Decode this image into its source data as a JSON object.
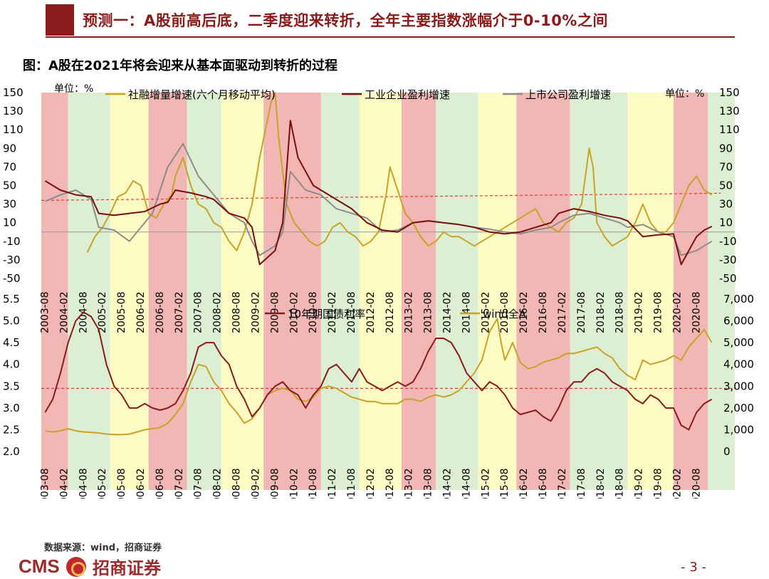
{
  "header": {
    "title": "预测一：A股前高后底，二季度迎来转折，全年主要指数涨幅介于0-10%之间"
  },
  "figure": {
    "title": "图：A股在2021年将会迎来从基本面驱动到转折的过程"
  },
  "footer": {
    "source": "数据来源：wind，招商证券",
    "logo_text": "CMS",
    "logo_cn": "招商证券",
    "page_number": "- 3 -"
  },
  "colors": {
    "red_band": "#f2b7b4",
    "green_band": "#dcefd3",
    "yellow_band": "#fdfbc4",
    "tsf": "#c9a227",
    "industrial": "#7b0d0d",
    "listed": "#8c8c8c",
    "bond": "#8b1a1a",
    "wind": "#c9a227",
    "reference_line": "#e53935",
    "wind_fill": "#d4a017"
  },
  "chart_data": [
    {
      "type": "line",
      "y_unit_left": "单位：%",
      "y_unit_right": "单位：%",
      "ylim": [
        -50,
        150
      ],
      "yticks": [
        -50,
        -30,
        -10,
        10,
        30,
        50,
        70,
        90,
        110,
        130,
        150
      ],
      "xlim": [
        2003.5,
        2021.6
      ],
      "x_tick_labels": [
        "2003-08",
        "2004-02",
        "2004-08",
        "2005-02",
        "2005-08",
        "2006-02",
        "2006-08",
        "2007-02",
        "2007-08",
        "2008-02",
        "2008-08",
        "2009-02",
        "2009-08",
        "2010-02",
        "2010-08",
        "2011-02",
        "2011-08",
        "2012-02",
        "2012-08",
        "2013-02",
        "2013-08",
        "2014-02",
        "2014-08",
        "2015-02",
        "2015-08",
        "2016-02",
        "2016-08",
        "2017-02",
        "2017-08",
        "2018-02",
        "2018-08",
        "2019-02",
        "2019-08",
        "2020-02",
        "2020-08"
      ],
      "reference_line": 34,
      "series": [
        {
          "name": "社融增量增速(六个月移动平均)",
          "x": [
            2004.7,
            2004.9,
            2005.1,
            2005.3,
            2005.5,
            2005.7,
            2005.9,
            2006.1,
            2006.3,
            2006.5,
            2006.7,
            2006.9,
            2007.0,
            2007.2,
            2007.4,
            2007.6,
            2007.8,
            2008.0,
            2008.2,
            2008.4,
            2008.6,
            2008.8,
            2009.0,
            2009.2,
            2009.4,
            2009.5,
            2009.6,
            2009.7,
            2009.9,
            2010.1,
            2010.3,
            2010.5,
            2010.7,
            2010.9,
            2011.1,
            2011.3,
            2011.5,
            2011.7,
            2011.9,
            2012.1,
            2012.3,
            2012.5,
            2012.6,
            2012.8,
            2013.0,
            2013.2,
            2013.4,
            2013.6,
            2013.8,
            2014.0,
            2014.2,
            2014.4,
            2014.6,
            2014.8,
            2015.0,
            2015.2,
            2015.4,
            2015.6,
            2015.8,
            2016.0,
            2016.2,
            2016.4,
            2016.6,
            2016.8,
            2017.0,
            2017.2,
            2017.4,
            2017.6,
            2017.8,
            2017.9,
            2018.0,
            2018.2,
            2018.4,
            2018.6,
            2018.8,
            2019.0,
            2019.2,
            2019.4,
            2019.6,
            2019.8,
            2020.0,
            2020.2,
            2020.4,
            2020.6,
            2020.8,
            2021.0
          ],
          "values": [
            -22,
            -5,
            5,
            20,
            38,
            42,
            55,
            50,
            20,
            15,
            30,
            40,
            60,
            80,
            50,
            30,
            25,
            10,
            5,
            -10,
            -20,
            0,
            30,
            80,
            120,
            140,
            150,
            100,
            30,
            10,
            0,
            -10,
            -15,
            -10,
            5,
            10,
            0,
            -5,
            -15,
            -10,
            0,
            40,
            70,
            45,
            20,
            10,
            -5,
            -15,
            -10,
            0,
            -5,
            -5,
            -10,
            -15,
            -10,
            -5,
            0,
            5,
            10,
            15,
            20,
            25,
            10,
            5,
            0,
            10,
            15,
            30,
            90,
            70,
            10,
            -5,
            -15,
            -10,
            -5,
            10,
            30,
            10,
            0,
            0,
            10,
            30,
            50,
            60,
            45,
            40
          ]
        },
        {
          "name": "工业企业盈利增速",
          "x": [
            2003.6,
            2004.0,
            2004.4,
            2004.8,
            2005.0,
            2005.4,
            2005.8,
            2006.2,
            2006.6,
            2006.8,
            2007.0,
            2007.4,
            2007.8,
            2008.0,
            2008.4,
            2008.8,
            2009.0,
            2009.2,
            2009.6,
            2009.8,
            2010.0,
            2010.2,
            2010.6,
            2010.8,
            2011.2,
            2011.6,
            2012.0,
            2012.4,
            2012.8,
            2013.2,
            2013.6,
            2014.0,
            2014.4,
            2014.8,
            2015.2,
            2015.6,
            2016.0,
            2016.4,
            2016.8,
            2017.0,
            2017.4,
            2017.8,
            2018.2,
            2018.6,
            2018.8,
            2019.2,
            2019.6,
            2020.0,
            2020.2,
            2020.6,
            2020.8,
            2021.0
          ],
          "values": [
            55,
            45,
            40,
            38,
            20,
            18,
            20,
            22,
            30,
            32,
            45,
            42,
            38,
            35,
            20,
            15,
            5,
            -35,
            -20,
            10,
            120,
            80,
            50,
            45,
            35,
            25,
            10,
            2,
            0,
            10,
            12,
            10,
            8,
            5,
            0,
            -2,
            0,
            5,
            10,
            20,
            25,
            22,
            18,
            15,
            12,
            -5,
            -3,
            -2,
            -35,
            -5,
            2,
            6
          ]
        },
        {
          "name": "上市公司盈利增速",
          "x": [
            2003.6,
            2004.0,
            2004.4,
            2004.8,
            2005.0,
            2005.4,
            2005.8,
            2006.0,
            2006.4,
            2006.8,
            2007.2,
            2007.6,
            2008.0,
            2008.4,
            2008.8,
            2009.0,
            2009.2,
            2009.6,
            2009.8,
            2010.0,
            2010.4,
            2010.8,
            2011.2,
            2011.6,
            2012.0,
            2012.4,
            2012.8,
            2013.2,
            2013.6,
            2014.0,
            2014.4,
            2014.8,
            2015.2,
            2015.6,
            2016.0,
            2016.4,
            2016.8,
            2017.0,
            2017.4,
            2017.8,
            2018.2,
            2018.6,
            2018.8,
            2019.2,
            2019.6,
            2020.0,
            2020.2,
            2020.6,
            2021.0
          ],
          "values": [
            33,
            40,
            45,
            35,
            5,
            2,
            -10,
            0,
            20,
            70,
            95,
            60,
            40,
            20,
            10,
            -10,
            -25,
            -15,
            0,
            65,
            45,
            40,
            25,
            20,
            15,
            0,
            2,
            10,
            12,
            10,
            8,
            5,
            3,
            0,
            -2,
            2,
            5,
            10,
            18,
            20,
            15,
            10,
            5,
            8,
            0,
            -5,
            -25,
            -20,
            -10
          ]
        }
      ]
    },
    {
      "type": "line",
      "ylim_left": [
        2.0,
        5.5
      ],
      "yticks_left": [
        2.0,
        2.5,
        3.0,
        3.5,
        4.0,
        4.5,
        5.0,
        5.5
      ],
      "ylim_right": [
        0,
        7000
      ],
      "yticks_right": [
        0,
        1000,
        2000,
        3000,
        4000,
        5000,
        6000,
        7000
      ],
      "ytick_labels_right": [
        "0",
        "1,000",
        "2,000",
        "3,000",
        "4,000",
        "5,000",
        "6,000",
        "7,000"
      ],
      "xlim": [
        2003.5,
        2021.6
      ],
      "x_tick_labels": [
        "2003-08",
        "2004-02",
        "2004-08",
        "2005-02",
        "2005-08",
        "2006-02",
        "2006-08",
        "2007-02",
        "2007-08",
        "2008-02",
        "2008-08",
        "2009-02",
        "2009-08",
        "2010-02",
        "2010-08",
        "2011-02",
        "2011-08",
        "2012-02",
        "2012-08",
        "2013-02",
        "2013-08",
        "2014-02",
        "2014-08",
        "2015-02",
        "2015-08",
        "2016-02",
        "2016-08",
        "2017-02",
        "2017-08",
        "2018-02",
        "2018-08",
        "2019-02",
        "2019-08",
        "2020-02",
        "2020-08"
      ],
      "reference_line": 3.45,
      "series": [
        {
          "name": "10年期国债利率",
          "axis": "left",
          "x": [
            2003.6,
            2003.8,
            2004.0,
            2004.2,
            2004.4,
            2004.6,
            2004.8,
            2005.0,
            2005.2,
            2005.4,
            2005.6,
            2005.8,
            2006.0,
            2006.2,
            2006.4,
            2006.6,
            2006.8,
            2007.0,
            2007.2,
            2007.4,
            2007.6,
            2007.8,
            2008.0,
            2008.2,
            2008.4,
            2008.6,
            2008.8,
            2009.0,
            2009.2,
            2009.4,
            2009.6,
            2009.8,
            2010.0,
            2010.2,
            2010.4,
            2010.6,
            2010.8,
            2011.0,
            2011.2,
            2011.4,
            2011.6,
            2011.8,
            2012.0,
            2012.2,
            2012.4,
            2012.6,
            2012.8,
            2013.0,
            2013.2,
            2013.4,
            2013.6,
            2013.8,
            2014.0,
            2014.2,
            2014.4,
            2014.6,
            2014.8,
            2015.0,
            2015.2,
            2015.4,
            2015.6,
            2015.8,
            2016.0,
            2016.2,
            2016.4,
            2016.6,
            2016.8,
            2017.0,
            2017.2,
            2017.4,
            2017.6,
            2017.8,
            2018.0,
            2018.2,
            2018.4,
            2018.6,
            2018.8,
            2019.0,
            2019.2,
            2019.4,
            2019.6,
            2019.8,
            2020.0,
            2020.2,
            2020.4,
            2020.6,
            2020.8,
            2021.0
          ],
          "values": [
            2.9,
            3.2,
            3.8,
            4.5,
            5.0,
            5.2,
            5.1,
            4.8,
            4.0,
            3.5,
            3.3,
            3.0,
            3.0,
            3.1,
            3.0,
            2.95,
            3.0,
            3.1,
            3.4,
            3.8,
            4.4,
            4.5,
            4.5,
            4.2,
            4.0,
            3.5,
            3.2,
            2.8,
            3.0,
            3.3,
            3.5,
            3.6,
            3.4,
            3.3,
            3.0,
            3.3,
            3.5,
            3.9,
            4.0,
            3.8,
            3.6,
            3.9,
            3.6,
            3.5,
            3.4,
            3.5,
            3.6,
            3.5,
            3.6,
            3.9,
            4.3,
            4.6,
            4.6,
            4.5,
            4.2,
            3.8,
            3.6,
            3.4,
            3.6,
            3.5,
            3.3,
            3.0,
            2.85,
            2.9,
            2.95,
            2.8,
            2.7,
            3.0,
            3.4,
            3.6,
            3.6,
            3.8,
            3.9,
            3.8,
            3.6,
            3.5,
            3.4,
            3.2,
            3.1,
            3.3,
            3.2,
            3.0,
            3.0,
            2.6,
            2.5,
            2.9,
            3.1,
            3.2
          ]
        },
        {
          "name": "wind全A",
          "axis": "right",
          "x": [
            2003.6,
            2003.8,
            2004.0,
            2004.2,
            2004.4,
            2004.6,
            2004.8,
            2005.0,
            2005.2,
            2005.4,
            2005.6,
            2005.8,
            2006.0,
            2006.2,
            2006.4,
            2006.6,
            2006.8,
            2007.0,
            2007.2,
            2007.4,
            2007.6,
            2007.8,
            2008.0,
            2008.2,
            2008.4,
            2008.6,
            2008.8,
            2009.0,
            2009.2,
            2009.4,
            2009.6,
            2009.8,
            2010.0,
            2010.2,
            2010.4,
            2010.6,
            2010.8,
            2011.0,
            2011.2,
            2011.4,
            2011.6,
            2011.8,
            2012.0,
            2012.2,
            2012.4,
            2012.6,
            2012.8,
            2013.0,
            2013.2,
            2013.4,
            2013.6,
            2013.8,
            2014.0,
            2014.2,
            2014.4,
            2014.6,
            2014.8,
            2015.0,
            2015.2,
            2015.4,
            2015.5,
            2015.6,
            2015.8,
            2016.0,
            2016.2,
            2016.4,
            2016.6,
            2016.8,
            2017.0,
            2017.2,
            2017.4,
            2017.6,
            2017.8,
            2018.0,
            2018.2,
            2018.4,
            2018.6,
            2018.8,
            2019.0,
            2019.2,
            2019.4,
            2019.6,
            2019.8,
            2020.0,
            2020.2,
            2020.4,
            2020.6,
            2020.8,
            2021.0
          ],
          "values": [
            950,
            900,
            950,
            1050,
            950,
            900,
            880,
            850,
            800,
            780,
            780,
            800,
            900,
            1000,
            1050,
            1100,
            1300,
            1700,
            2200,
            3200,
            4000,
            3900,
            3200,
            2800,
            2200,
            1800,
            1300,
            1500,
            2000,
            2600,
            2800,
            2900,
            2800,
            2400,
            2300,
            2500,
            2900,
            3000,
            2900,
            2700,
            2500,
            2400,
            2300,
            2300,
            2200,
            2200,
            2200,
            2400,
            2400,
            2300,
            2500,
            2600,
            2500,
            2600,
            2800,
            3200,
            3600,
            4200,
            5500,
            6100,
            5000,
            4200,
            5000,
            4100,
            3800,
            3900,
            4100,
            4200,
            4300,
            4500,
            4500,
            4600,
            4700,
            4800,
            4500,
            4300,
            3800,
            3500,
            3300,
            4200,
            4000,
            4100,
            4200,
            4400,
            4200,
            4800,
            5200,
            5600,
            5000
          ]
        }
      ]
    }
  ],
  "bands": [
    {
      "start": 2003.5,
      "end": 2004.2,
      "color": "red"
    },
    {
      "start": 2004.2,
      "end": 2005.3,
      "color": "green"
    },
    {
      "start": 2005.3,
      "end": 2006.3,
      "color": "yellow"
    },
    {
      "start": 2006.3,
      "end": 2007.3,
      "color": "red"
    },
    {
      "start": 2007.3,
      "end": 2008.2,
      "color": "green"
    },
    {
      "start": 2008.2,
      "end": 2009.3,
      "color": "yellow"
    },
    {
      "start": 2009.3,
      "end": 2010.8,
      "color": "red"
    },
    {
      "start": 2010.8,
      "end": 2011.8,
      "color": "green"
    },
    {
      "start": 2011.8,
      "end": 2012.9,
      "color": "yellow"
    },
    {
      "start": 2012.9,
      "end": 2013.8,
      "color": "red"
    },
    {
      "start": 2013.8,
      "end": 2014.9,
      "color": "green"
    },
    {
      "start": 2014.9,
      "end": 2015.9,
      "color": "yellow"
    },
    {
      "start": 2015.9,
      "end": 2017.3,
      "color": "red"
    },
    {
      "start": 2017.3,
      "end": 2018.0,
      "color": "green"
    },
    {
      "start": 2018.0,
      "end": 2018.8,
      "color": "green"
    },
    {
      "start": 2018.8,
      "end": 2020.0,
      "color": "yellow"
    },
    {
      "start": 2020.0,
      "end": 2020.9,
      "color": "red"
    },
    {
      "start": 2020.9,
      "end": 2021.6,
      "color": "green"
    }
  ]
}
